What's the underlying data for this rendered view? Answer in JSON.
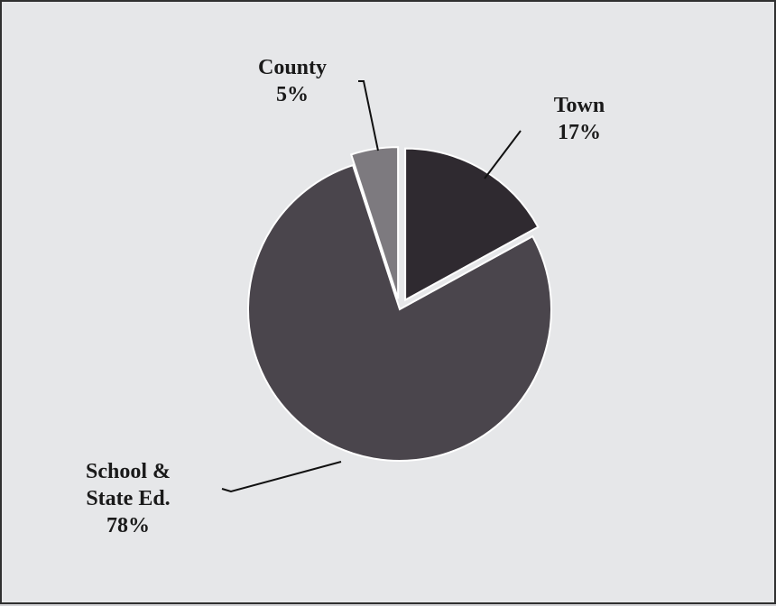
{
  "chart_data": {
    "type": "pie",
    "slices": [
      {
        "label_lines": [
          "Town"
        ],
        "value_text": "17%",
        "value": 17,
        "color": "#2f2a30",
        "exploded": true
      },
      {
        "label_lines": [
          "School &",
          "State Ed."
        ],
        "value_text": "78%",
        "value": 78,
        "color": "#4a454c",
        "exploded": false
      },
      {
        "label_lines": [
          "County"
        ],
        "value_text": "5%",
        "value": 5,
        "color": "#7d7a7f",
        "exploded": true
      }
    ],
    "start_angle_deg": 0,
    "direction": "clockwise",
    "legend": "none",
    "background_color": "#e6e7e9",
    "border_color": "#303030"
  }
}
